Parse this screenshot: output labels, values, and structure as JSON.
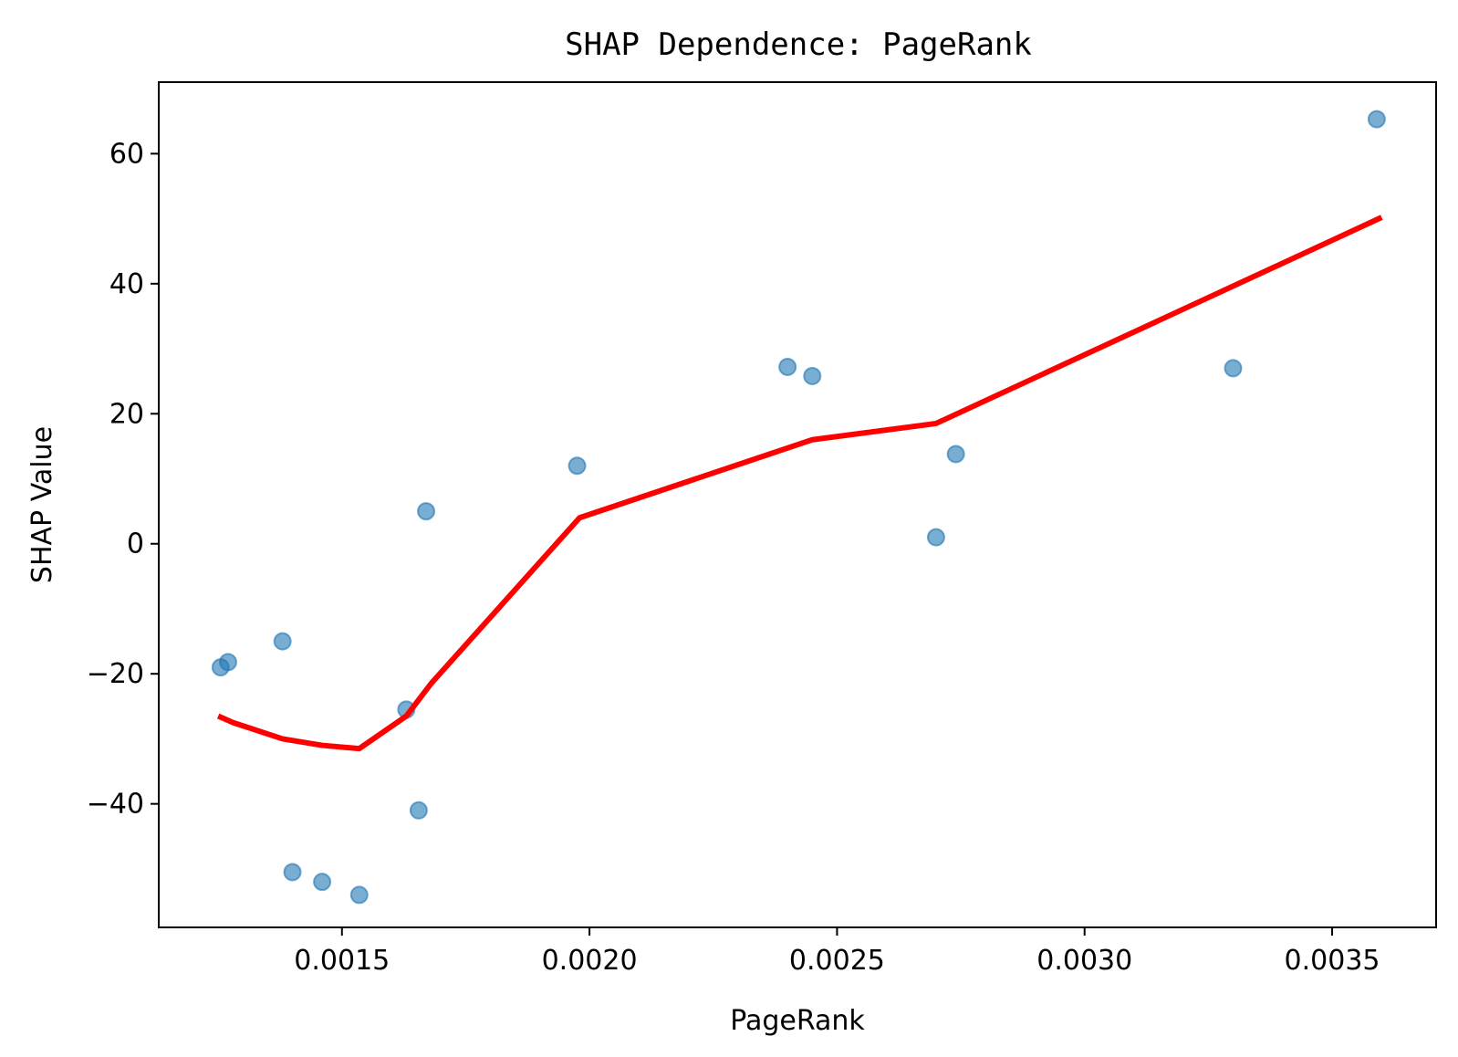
{
  "chart_data": {
    "type": "scatter",
    "title": "SHAP Dependence: PageRank",
    "xlabel": "PageRank",
    "ylabel": "SHAP Value",
    "xlim": [
      0.00113,
      0.00371
    ],
    "ylim": [
      -59,
      71
    ],
    "xticks": [
      0.0015,
      0.002,
      0.0025,
      0.003,
      0.0035
    ],
    "xtick_labels": [
      "0.0015",
      "0.0020",
      "0.0025",
      "0.0030",
      "0.0035"
    ],
    "yticks": [
      -40,
      -20,
      0,
      20,
      40,
      60
    ],
    "ytick_labels": [
      "−40",
      "−20",
      "0",
      "20",
      "40",
      "60"
    ],
    "grid": false,
    "legend": "none",
    "colors": {
      "points": "#1f77b4",
      "trend": "#ff0000"
    },
    "series": [
      {
        "kind": "scatter",
        "x": [
          0.001255,
          0.00127,
          0.00138,
          0.0014,
          0.00146,
          0.001535,
          0.00163,
          0.001655,
          0.00167,
          0.001975,
          0.0024,
          0.00245,
          0.0027,
          0.00274,
          0.0033,
          0.00359
        ],
        "y": [
          -19,
          -18.2,
          -15,
          -50.5,
          -52,
          -54,
          -25.5,
          -41,
          5,
          12,
          27.2,
          25.8,
          1,
          13.8,
          27,
          65.3
        ]
      },
      {
        "kind": "line",
        "x": [
          0.00125,
          0.00128,
          0.00138,
          0.00146,
          0.001535,
          0.00163,
          0.00168,
          0.00198,
          0.00245,
          0.0027,
          0.0036
        ],
        "y": [
          -26.5,
          -27.5,
          -30,
          -31,
          -31.5,
          -26.5,
          -21.5,
          4,
          16,
          18.5,
          50.2
        ]
      }
    ]
  }
}
